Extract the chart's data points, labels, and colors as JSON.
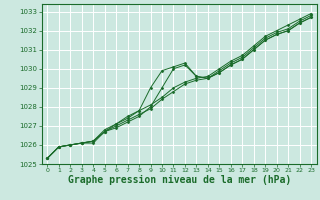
{
  "bg_color": "#cce8e0",
  "grid_color": "#ffffff",
  "line_color": "#1a6b2a",
  "marker_color": "#1a6b2a",
  "xlabel": "Graphe pression niveau de la mer (hPa)",
  "xlabel_fontsize": 7,
  "ylim": [
    1025.0,
    1033.4
  ],
  "xlim": [
    -0.5,
    23.5
  ],
  "yticks": [
    1025,
    1026,
    1027,
    1028,
    1029,
    1030,
    1031,
    1032,
    1033
  ],
  "xticks": [
    0,
    1,
    2,
    3,
    4,
    5,
    6,
    7,
    8,
    9,
    10,
    11,
    12,
    13,
    14,
    15,
    16,
    17,
    18,
    19,
    20,
    21,
    22,
    23
  ],
  "series": [
    [
      1025.3,
      1025.9,
      1026.0,
      1026.1,
      1026.1,
      1026.7,
      1026.9,
      1027.2,
      1027.5,
      1028.0,
      1029.0,
      1030.0,
      1030.2,
      1029.6,
      1029.5,
      1029.8,
      1030.2,
      1030.5,
      1031.0,
      1031.5,
      1031.8,
      1032.0,
      1032.4,
      1032.7
    ],
    [
      1025.3,
      1025.9,
      1026.0,
      1026.1,
      1026.2,
      1026.7,
      1027.0,
      1027.3,
      1027.6,
      1027.9,
      1028.4,
      1028.8,
      1029.2,
      1029.4,
      1029.5,
      1029.9,
      1030.3,
      1030.6,
      1031.1,
      1031.6,
      1031.9,
      1032.1,
      1032.5,
      1032.8
    ],
    [
      1025.3,
      1025.9,
      1026.0,
      1026.1,
      1026.2,
      1026.8,
      1027.1,
      1027.4,
      1027.8,
      1028.1,
      1028.5,
      1029.0,
      1029.3,
      1029.5,
      1029.6,
      1030.0,
      1030.4,
      1030.7,
      1031.2,
      1031.7,
      1032.0,
      1032.3,
      1032.6,
      1032.9
    ],
    [
      1025.3,
      1025.9,
      1026.0,
      1026.1,
      1026.2,
      1026.7,
      1027.1,
      1027.5,
      1027.8,
      1029.0,
      1029.9,
      1030.1,
      1030.3,
      1029.6,
      1029.5,
      1029.8,
      1030.2,
      1030.5,
      1031.0,
      1031.5,
      1031.8,
      1032.0,
      1032.4,
      1032.7
    ]
  ]
}
